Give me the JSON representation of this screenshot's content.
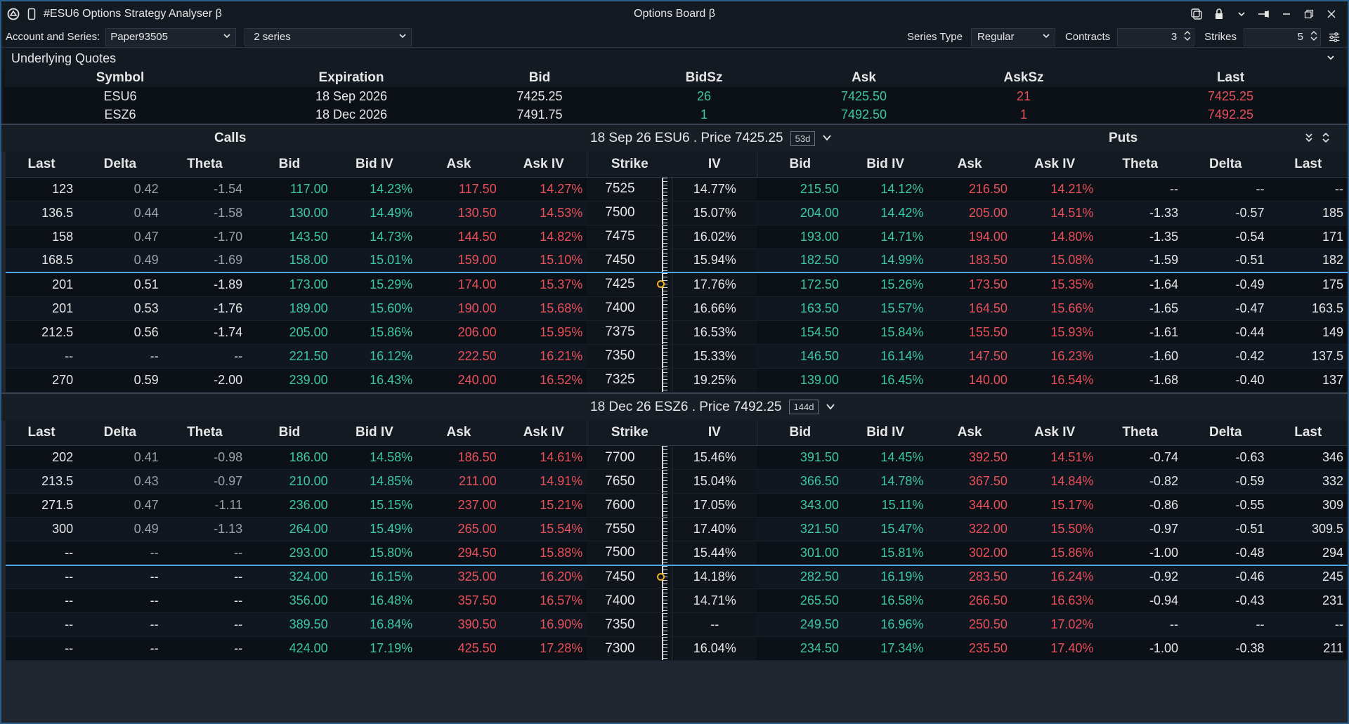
{
  "window": {
    "title": "#ESU6  Options Strategy Analyser β",
    "center_title": "Options Board β"
  },
  "toolbar": {
    "account_label": "Account and Series:",
    "account_value": "Paper93505",
    "series_value": "2 series",
    "series_type_label": "Series Type",
    "series_type_value": "Regular",
    "contracts_label": "Contracts",
    "contracts_value": "3",
    "strikes_label": "Strikes",
    "strikes_value": "5"
  },
  "underlying": {
    "title": "Underlying Quotes",
    "columns": [
      "Symbol",
      "Expiration",
      "Bid",
      "BidSz",
      "Ask",
      "AskSz",
      "Last"
    ],
    "rows": [
      [
        "ESU6",
        "18 Sep 2026",
        "7425.25",
        "26",
        "7425.50",
        "21",
        "7425.25"
      ],
      [
        "ESZ6",
        "18 Dec 2026",
        "7491.75",
        "1",
        "7492.50",
        "1",
        "7492.25"
      ]
    ]
  },
  "board": {
    "calls_label": "Calls",
    "puts_label": "Puts",
    "columns": [
      "Last",
      "Delta",
      "Theta",
      "Bid",
      "Bid IV",
      "Ask",
      "Ask IV",
      "Strike",
      "IV",
      "Bid",
      "Bid IV",
      "Ask",
      "Ask IV",
      "Theta",
      "Delta",
      "Last"
    ],
    "series": [
      {
        "header": "18 Sep 26 ESU6 . Price 7425.25",
        "days": "53d",
        "atm_index": 4,
        "rows": [
          [
            "123",
            "0.42",
            "-1.54",
            "117.00",
            "14.23%",
            "117.50",
            "14.27%",
            "7525",
            "14.77%",
            "215.50",
            "14.12%",
            "216.50",
            "14.21%",
            "--",
            "--",
            "--"
          ],
          [
            "136.5",
            "0.44",
            "-1.58",
            "130.00",
            "14.49%",
            "130.50",
            "14.53%",
            "7500",
            "15.07%",
            "204.00",
            "14.42%",
            "205.00",
            "14.51%",
            "-1.33",
            "-0.57",
            "185"
          ],
          [
            "158",
            "0.47",
            "-1.70",
            "143.50",
            "14.73%",
            "144.50",
            "14.82%",
            "7475",
            "16.02%",
            "193.00",
            "14.71%",
            "194.00",
            "14.80%",
            "-1.35",
            "-0.54",
            "171"
          ],
          [
            "168.5",
            "0.49",
            "-1.69",
            "158.00",
            "15.01%",
            "159.00",
            "15.10%",
            "7450",
            "15.94%",
            "182.50",
            "14.99%",
            "183.50",
            "15.08%",
            "-1.59",
            "-0.51",
            "182"
          ],
          [
            "201",
            "0.51",
            "-1.89",
            "173.00",
            "15.29%",
            "174.00",
            "15.37%",
            "7425",
            "17.76%",
            "172.50",
            "15.26%",
            "173.50",
            "15.35%",
            "-1.64",
            "-0.49",
            "175"
          ],
          [
            "201",
            "0.53",
            "-1.76",
            "189.00",
            "15.60%",
            "190.00",
            "15.68%",
            "7400",
            "16.66%",
            "163.50",
            "15.57%",
            "164.50",
            "15.66%",
            "-1.65",
            "-0.47",
            "163.5"
          ],
          [
            "212.5",
            "0.56",
            "-1.74",
            "205.00",
            "15.86%",
            "206.00",
            "15.95%",
            "7375",
            "16.53%",
            "154.50",
            "15.84%",
            "155.50",
            "15.93%",
            "-1.61",
            "-0.44",
            "149"
          ],
          [
            "--",
            "--",
            "--",
            "221.50",
            "16.12%",
            "222.50",
            "16.21%",
            "7350",
            "15.33%",
            "146.50",
            "16.14%",
            "147.50",
            "16.23%",
            "-1.60",
            "-0.42",
            "137.5"
          ],
          [
            "270",
            "0.59",
            "-2.00",
            "239.00",
            "16.43%",
            "240.00",
            "16.52%",
            "7325",
            "19.25%",
            "139.00",
            "16.45%",
            "140.00",
            "16.54%",
            "-1.68",
            "-0.40",
            "137"
          ]
        ]
      },
      {
        "header": "18 Dec 26 ESZ6 . Price 7492.25",
        "days": "144d",
        "atm_index": 5,
        "rows": [
          [
            "202",
            "0.41",
            "-0.98",
            "186.00",
            "14.58%",
            "186.50",
            "14.61%",
            "7700",
            "15.46%",
            "391.50",
            "14.45%",
            "392.50",
            "14.51%",
            "-0.74",
            "-0.63",
            "346"
          ],
          [
            "213.5",
            "0.43",
            "-0.97",
            "210.00",
            "14.85%",
            "211.00",
            "14.91%",
            "7650",
            "15.04%",
            "366.50",
            "14.78%",
            "367.50",
            "14.84%",
            "-0.82",
            "-0.59",
            "332"
          ],
          [
            "271.5",
            "0.47",
            "-1.11",
            "236.00",
            "15.15%",
            "237.00",
            "15.21%",
            "7600",
            "17.05%",
            "343.00",
            "15.11%",
            "344.00",
            "15.17%",
            "-0.86",
            "-0.55",
            "309"
          ],
          [
            "300",
            "0.49",
            "-1.13",
            "264.00",
            "15.49%",
            "265.00",
            "15.54%",
            "7550",
            "17.40%",
            "321.50",
            "15.47%",
            "322.00",
            "15.50%",
            "-0.97",
            "-0.51",
            "309.5"
          ],
          [
            "--",
            "--",
            "--",
            "293.00",
            "15.80%",
            "294.50",
            "15.88%",
            "7500",
            "15.44%",
            "301.00",
            "15.81%",
            "302.00",
            "15.86%",
            "-1.00",
            "-0.48",
            "294"
          ],
          [
            "--",
            "--",
            "--",
            "324.00",
            "16.15%",
            "325.00",
            "16.20%",
            "7450",
            "14.18%",
            "282.50",
            "16.19%",
            "283.50",
            "16.24%",
            "-0.92",
            "-0.46",
            "245"
          ],
          [
            "--",
            "--",
            "--",
            "356.00",
            "16.48%",
            "357.50",
            "16.57%",
            "7400",
            "14.71%",
            "265.50",
            "16.58%",
            "266.50",
            "16.63%",
            "-0.94",
            "-0.43",
            "231"
          ],
          [
            "--",
            "--",
            "--",
            "389.50",
            "16.84%",
            "390.50",
            "16.90%",
            "7350",
            "--",
            "249.50",
            "16.96%",
            "250.50",
            "17.02%",
            "--",
            "--",
            "--"
          ],
          [
            "--",
            "--",
            "--",
            "424.00",
            "17.19%",
            "425.50",
            "17.28%",
            "7300",
            "16.04%",
            "234.50",
            "17.34%",
            "235.50",
            "17.40%",
            "-1.00",
            "-0.38",
            "211"
          ]
        ]
      }
    ]
  },
  "colors": {
    "bid": "#3cc8a0",
    "ask": "#e8505a",
    "itm_call_bg": "#1f3b2e",
    "itm_put_bg": "#3a2126",
    "atm_line": "#4aa6e8"
  }
}
